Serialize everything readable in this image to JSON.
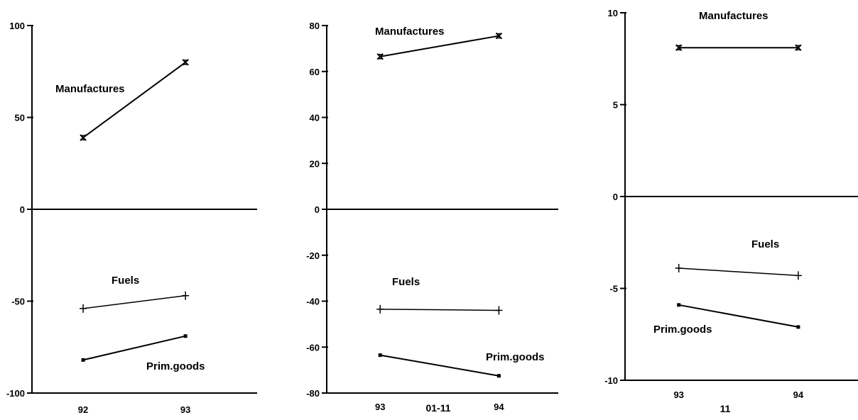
{
  "chart_data": [
    {
      "type": "line",
      "sublabel": "",
      "x": [
        "92",
        "93"
      ],
      "xlim": [
        91.5,
        93.7
      ],
      "ylim": [
        -100,
        100
      ],
      "yticks": [
        -100,
        -50,
        0,
        50,
        100
      ],
      "ytick_labels": [
        "-100",
        "-50",
        "0",
        "50",
        "100"
      ],
      "zero_line": true,
      "series": [
        {
          "name": "Manufactures",
          "values": [
            39,
            80
          ],
          "marker": "star"
        },
        {
          "name": "Fuels",
          "values": [
            -54,
            -47
          ],
          "marker": "plus"
        },
        {
          "name": "Prim.goods",
          "values": [
            -82,
            -69
          ],
          "marker": "dot"
        }
      ]
    },
    {
      "type": "line",
      "sublabel": "01-11",
      "x": [
        "93",
        "94"
      ],
      "xlim": [
        92.55,
        94.5
      ],
      "ylim": [
        -80,
        80
      ],
      "yticks": [
        -80,
        -60,
        -40,
        -20,
        0,
        20,
        40,
        60,
        80
      ],
      "ytick_labels": [
        "-80",
        "-60",
        "-40",
        "-20",
        "0",
        "20",
        "40",
        "60",
        "80"
      ],
      "zero_line": true,
      "series": [
        {
          "name": "Manufactures",
          "values": [
            66.5,
            75.5
          ],
          "marker": "star"
        },
        {
          "name": "Fuels",
          "values": [
            -43.5,
            -44
          ],
          "marker": "plus"
        },
        {
          "name": "Prim.goods",
          "values": [
            -63.5,
            -72.5
          ],
          "marker": "dot"
        }
      ]
    },
    {
      "type": "line",
      "sublabel": "11",
      "x": [
        "93",
        "94"
      ],
      "xlim": [
        92.55,
        94.5
      ],
      "ylim": [
        -10,
        10
      ],
      "yticks": [
        -10,
        -5,
        0,
        5,
        10
      ],
      "ytick_labels": [
        "-10",
        "-5",
        "0",
        "5",
        "10"
      ],
      "zero_line": true,
      "series": [
        {
          "name": "Manufactures",
          "values": [
            8.1,
            8.1
          ],
          "marker": "star"
        },
        {
          "name": "Fuels",
          "values": [
            -3.9,
            -4.3
          ],
          "marker": "plus"
        },
        {
          "name": "Prim.goods",
          "values": [
            -5.9,
            -7.1
          ],
          "marker": "dot"
        }
      ]
    }
  ]
}
